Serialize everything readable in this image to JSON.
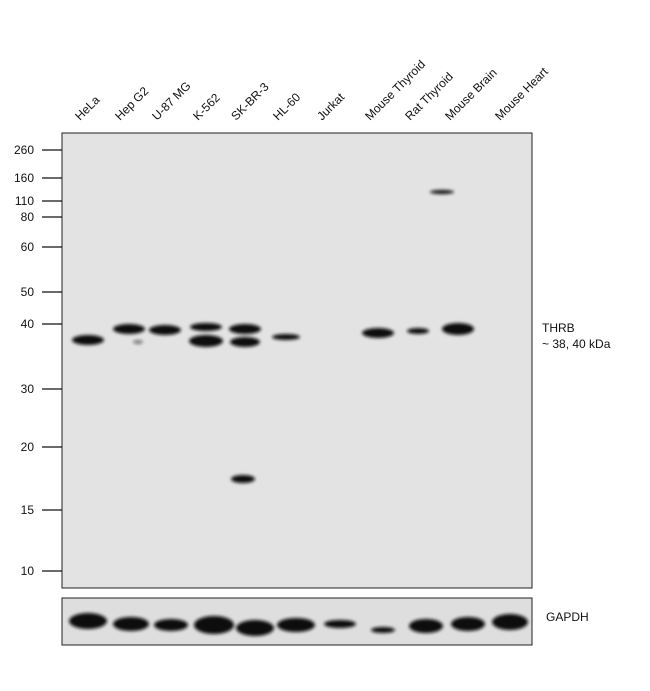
{
  "lanes": [
    "HeLa",
    "Hep G2",
    "U-87 MG",
    "K-562",
    "SK-BR-3",
    "HL-60",
    "Jurkat",
    "Mouse Thyroid",
    "Rat Thyroid",
    "Mouse Brain",
    "Mouse Heart"
  ],
  "markers": [
    "260",
    "160",
    "110",
    "80",
    "60",
    "50",
    "40",
    "30",
    "20",
    "15",
    "10"
  ],
  "target": {
    "name": "THRB",
    "size": "~ 38, 40 kDa"
  },
  "loading_control": "GAPDH"
}
